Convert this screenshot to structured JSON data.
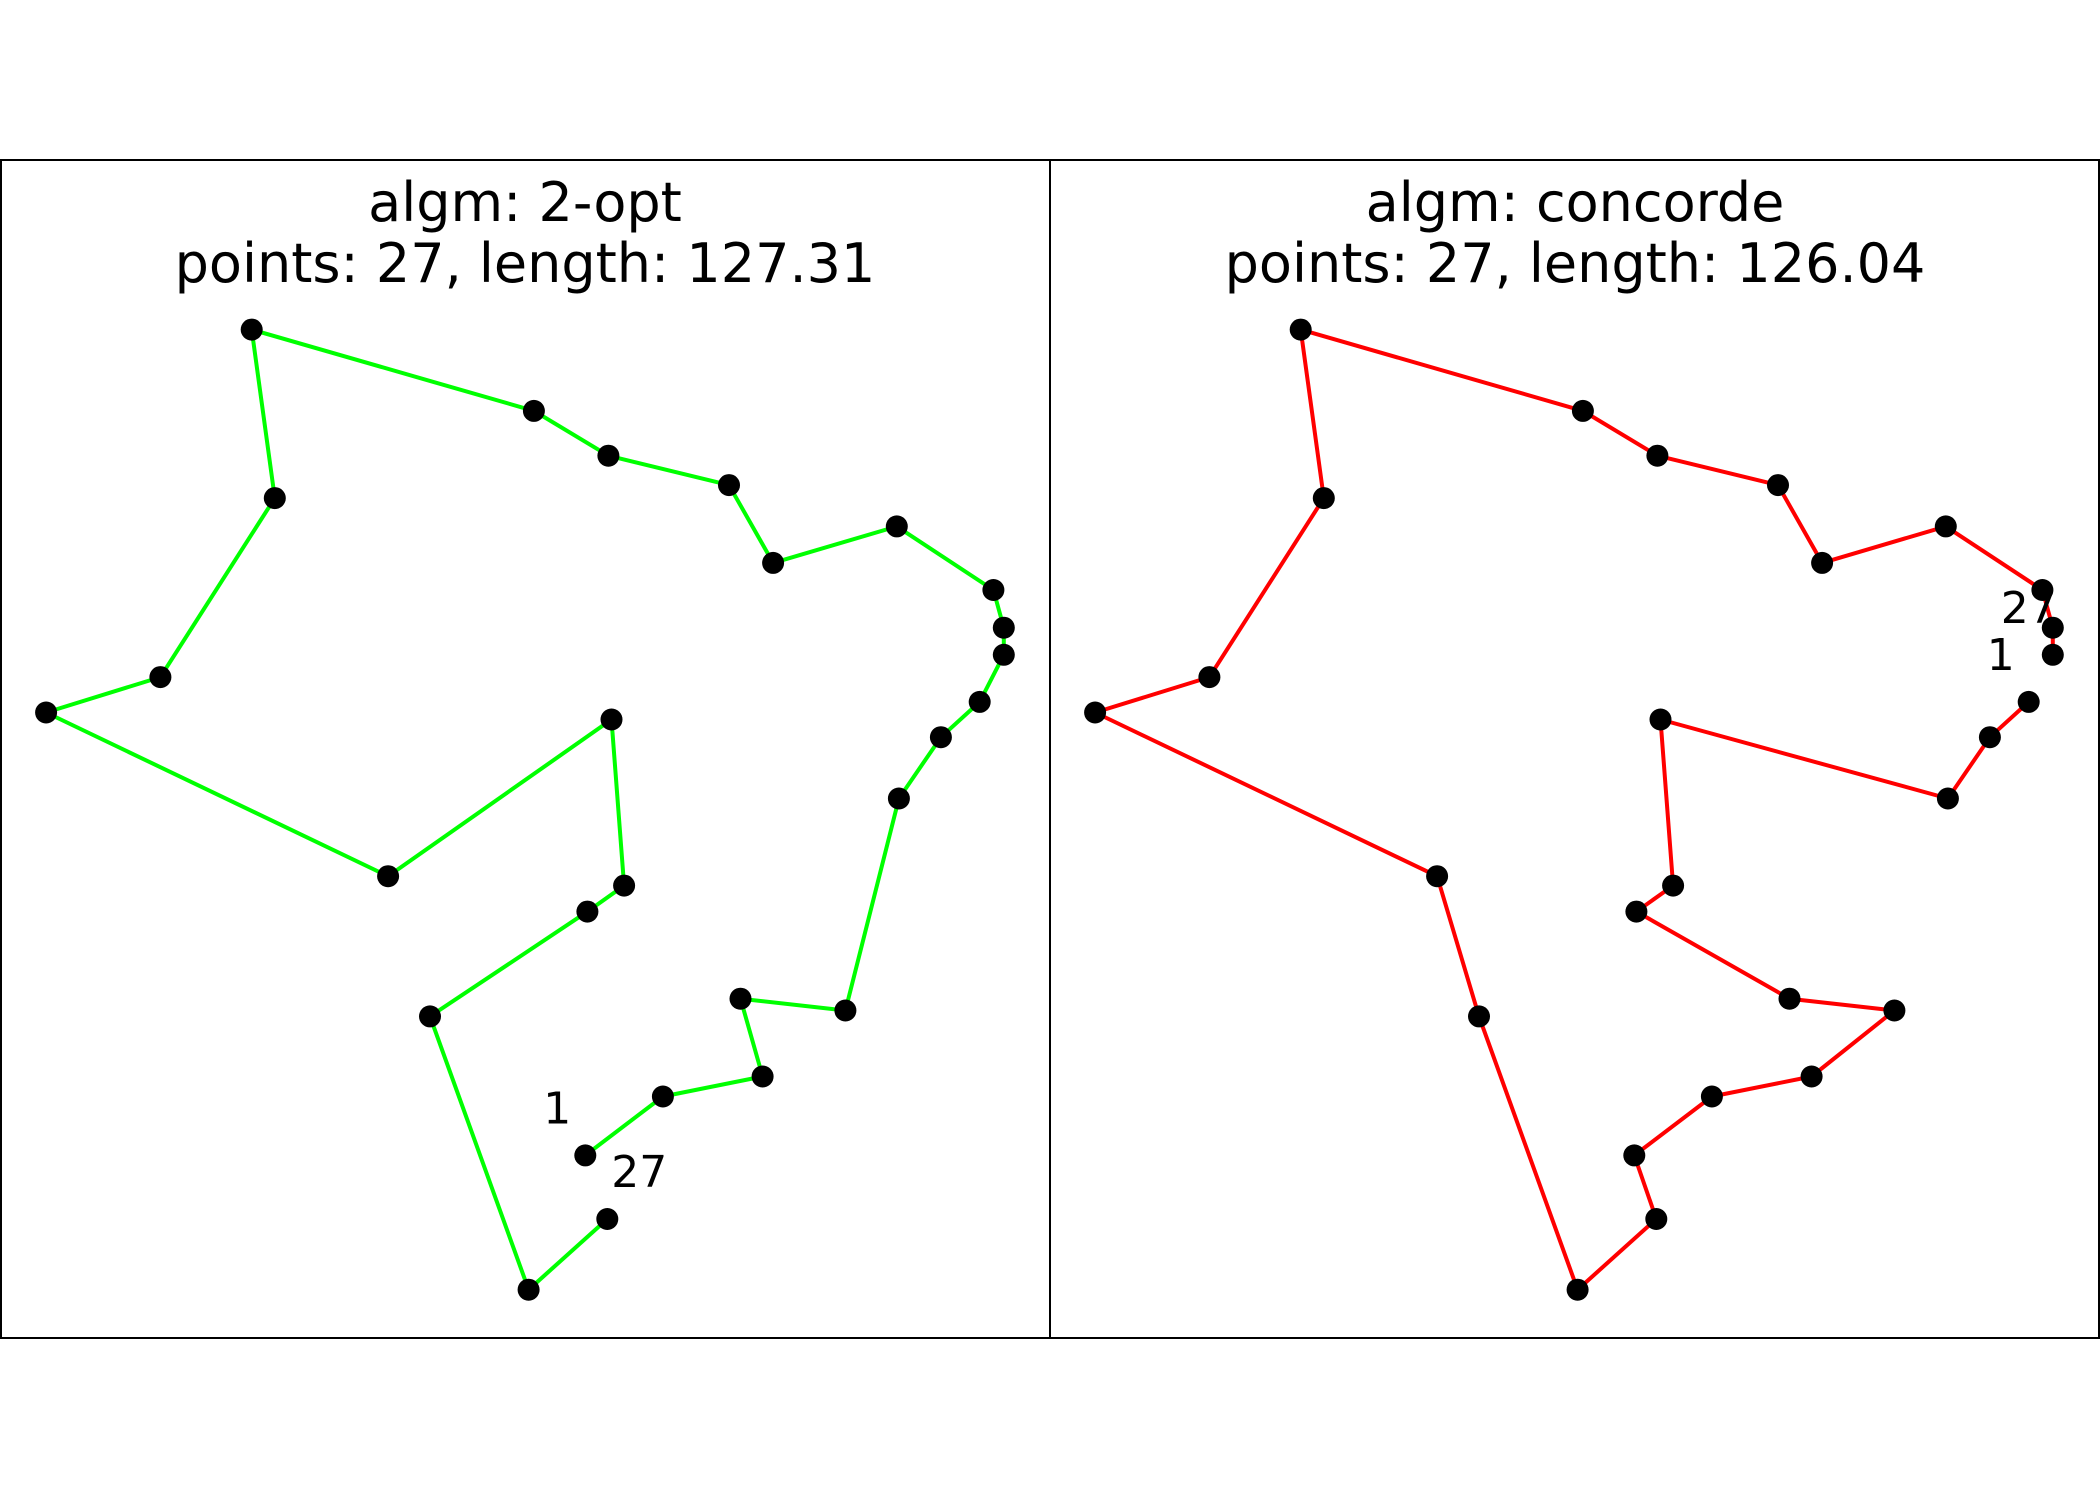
{
  "chart_data": [
    {
      "type": "scatter",
      "title_line1": "algm: 2-opt",
      "title_line2": "points: 27, length: 127.31",
      "algorithm": "2-opt",
      "points": 27,
      "length": 127.31,
      "line_color": "#00ff00",
      "marker_color": "#000000",
      "start_label": "1",
      "end_label": "27",
      "xlim": [
        0,
        100
      ],
      "ylim": [
        0,
        100
      ],
      "grid": false,
      "tour": [
        {
          "x": 55.7,
          "y": 15.5
        },
        {
          "x": 63.1,
          "y": 20.5
        },
        {
          "x": 72.6,
          "y": 22.2
        },
        {
          "x": 70.5,
          "y": 28.8
        },
        {
          "x": 80.5,
          "y": 27.8
        },
        {
          "x": 85.6,
          "y": 45.8
        },
        {
          "x": 89.6,
          "y": 51.0
        },
        {
          "x": 93.3,
          "y": 54.0
        },
        {
          "x": 95.6,
          "y": 58.0
        },
        {
          "x": 95.6,
          "y": 60.3
        },
        {
          "x": 94.6,
          "y": 63.5
        },
        {
          "x": 85.4,
          "y": 68.9
        },
        {
          "x": 73.6,
          "y": 65.8
        },
        {
          "x": 69.4,
          "y": 72.4
        },
        {
          "x": 57.9,
          "y": 74.9
        },
        {
          "x": 50.8,
          "y": 78.7
        },
        {
          "x": 23.9,
          "y": 85.6
        },
        {
          "x": 26.1,
          "y": 71.3
        },
        {
          "x": 15.2,
          "y": 56.1
        },
        {
          "x": 4.3,
          "y": 53.1
        },
        {
          "x": 36.9,
          "y": 39.2
        },
        {
          "x": 58.2,
          "y": 52.5
        },
        {
          "x": 59.4,
          "y": 38.4
        },
        {
          "x": 55.9,
          "y": 36.2
        },
        {
          "x": 40.9,
          "y": 27.3
        },
        {
          "x": 50.3,
          "y": 4.1
        },
        {
          "x": 57.8,
          "y": 10.1
        }
      ]
    },
    {
      "type": "scatter",
      "title_line1": "algm: concorde",
      "title_line2": "points: 27, length: 126.04",
      "algorithm": "concorde",
      "points": 27,
      "length": 126.04,
      "line_color": "#ff0000",
      "marker_color": "#000000",
      "start_label": "1",
      "end_label": "27",
      "xlim": [
        0,
        100
      ],
      "ylim": [
        0,
        100
      ],
      "grid": false,
      "tour": [
        {
          "x": 93.3,
          "y": 54.0
        },
        {
          "x": 89.6,
          "y": 51.0
        },
        {
          "x": 85.6,
          "y": 45.8
        },
        {
          "x": 58.2,
          "y": 52.5
        },
        {
          "x": 59.4,
          "y": 38.4
        },
        {
          "x": 55.9,
          "y": 36.2
        },
        {
          "x": 70.5,
          "y": 28.8
        },
        {
          "x": 80.5,
          "y": 27.8
        },
        {
          "x": 72.6,
          "y": 22.2
        },
        {
          "x": 63.1,
          "y": 20.5
        },
        {
          "x": 55.7,
          "y": 15.5
        },
        {
          "x": 57.8,
          "y": 10.1
        },
        {
          "x": 50.3,
          "y": 4.1
        },
        {
          "x": 40.9,
          "y": 27.3
        },
        {
          "x": 36.9,
          "y": 39.2
        },
        {
          "x": 4.3,
          "y": 53.1
        },
        {
          "x": 15.2,
          "y": 56.1
        },
        {
          "x": 26.1,
          "y": 71.3
        },
        {
          "x": 23.9,
          "y": 85.6
        },
        {
          "x": 50.8,
          "y": 78.7
        },
        {
          "x": 57.9,
          "y": 74.9
        },
        {
          "x": 69.4,
          "y": 72.4
        },
        {
          "x": 73.6,
          "y": 65.8
        },
        {
          "x": 85.4,
          "y": 68.9
        },
        {
          "x": 94.6,
          "y": 63.5
        },
        {
          "x": 95.6,
          "y": 60.3
        },
        {
          "x": 95.6,
          "y": 58.0
        }
      ]
    }
  ]
}
